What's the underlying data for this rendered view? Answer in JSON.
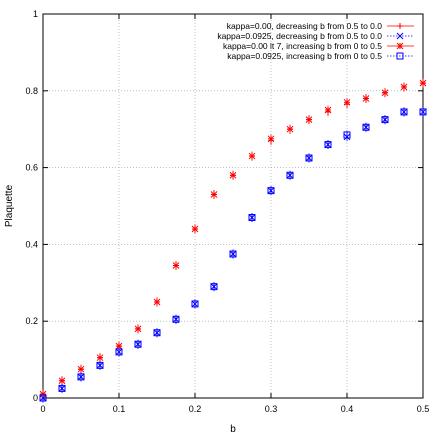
{
  "chart_data": {
    "type": "scatter",
    "title": "",
    "xlabel": "b",
    "ylabel": "Plaquette",
    "xlim": [
      0,
      0.5
    ],
    "ylim": [
      0,
      1
    ],
    "xticks": [
      "0",
      "0.1",
      "0.2",
      "0.3",
      "0.4",
      "0.5"
    ],
    "yticks": [
      "0",
      "0.2",
      "0.4",
      "0.6",
      "0.8",
      "1"
    ],
    "grid": true,
    "legend_position": "top-right",
    "series": [
      {
        "name": "kappa=0.00, decreasing b from 0.5 to 0.0",
        "marker": "plus",
        "color": "#ff0000",
        "x": [
          0.0,
          0.025,
          0.05,
          0.075,
          0.1,
          0.125,
          0.15,
          0.175,
          0.2,
          0.225,
          0.25,
          0.275,
          0.3,
          0.325,
          0.35,
          0.375,
          0.4,
          0.425,
          0.45,
          0.475,
          0.5
        ],
        "y": [
          0.01,
          0.045,
          0.075,
          0.105,
          0.135,
          0.18,
          0.25,
          0.345,
          0.44,
          0.53,
          0.58,
          0.63,
          0.67,
          0.7,
          0.725,
          0.745,
          0.765,
          0.78,
          0.795,
          0.81,
          0.82
        ]
      },
      {
        "name": "kappa=0.0925, decreasing b from 0.5 to 0.0",
        "marker": "cross",
        "color": "#0000ff",
        "x": [
          0.0,
          0.025,
          0.05,
          0.075,
          0.1,
          0.125,
          0.15,
          0.175,
          0.2,
          0.225,
          0.25,
          0.275,
          0.3,
          0.325,
          0.35,
          0.375,
          0.4,
          0.425,
          0.45,
          0.475,
          0.5
        ],
        "y": [
          0.0,
          0.025,
          0.055,
          0.085,
          0.12,
          0.14,
          0.17,
          0.205,
          0.245,
          0.29,
          0.375,
          0.47,
          0.54,
          0.58,
          0.625,
          0.66,
          0.68,
          0.705,
          0.725,
          0.745,
          0.745
        ]
      },
      {
        "name": "kappa=0.00 lt 7, increasing b from 0 to 0.5",
        "marker": "star",
        "color": "#ff0000",
        "x": [
          0.0,
          0.025,
          0.05,
          0.075,
          0.1,
          0.125,
          0.15,
          0.175,
          0.2,
          0.225,
          0.25,
          0.275,
          0.3,
          0.325,
          0.35,
          0.375,
          0.4,
          0.425,
          0.45,
          0.475,
          0.5
        ],
        "y": [
          0.01,
          0.045,
          0.075,
          0.105,
          0.135,
          0.18,
          0.25,
          0.345,
          0.44,
          0.53,
          0.58,
          0.63,
          0.675,
          0.7,
          0.725,
          0.75,
          0.77,
          0.78,
          0.795,
          0.81,
          0.82
        ]
      },
      {
        "name": "kappa=0.0925, increasing b from 0 to 0.5",
        "marker": "square",
        "color": "#0000ff",
        "x": [
          0.0,
          0.025,
          0.05,
          0.075,
          0.1,
          0.125,
          0.15,
          0.175,
          0.2,
          0.225,
          0.25,
          0.275,
          0.3,
          0.325,
          0.35,
          0.375,
          0.4,
          0.425,
          0.45,
          0.475,
          0.5
        ],
        "y": [
          0.0,
          0.025,
          0.055,
          0.085,
          0.12,
          0.14,
          0.17,
          0.205,
          0.245,
          0.29,
          0.375,
          0.47,
          0.54,
          0.58,
          0.625,
          0.66,
          0.685,
          0.705,
          0.725,
          0.745,
          0.745
        ]
      }
    ]
  }
}
